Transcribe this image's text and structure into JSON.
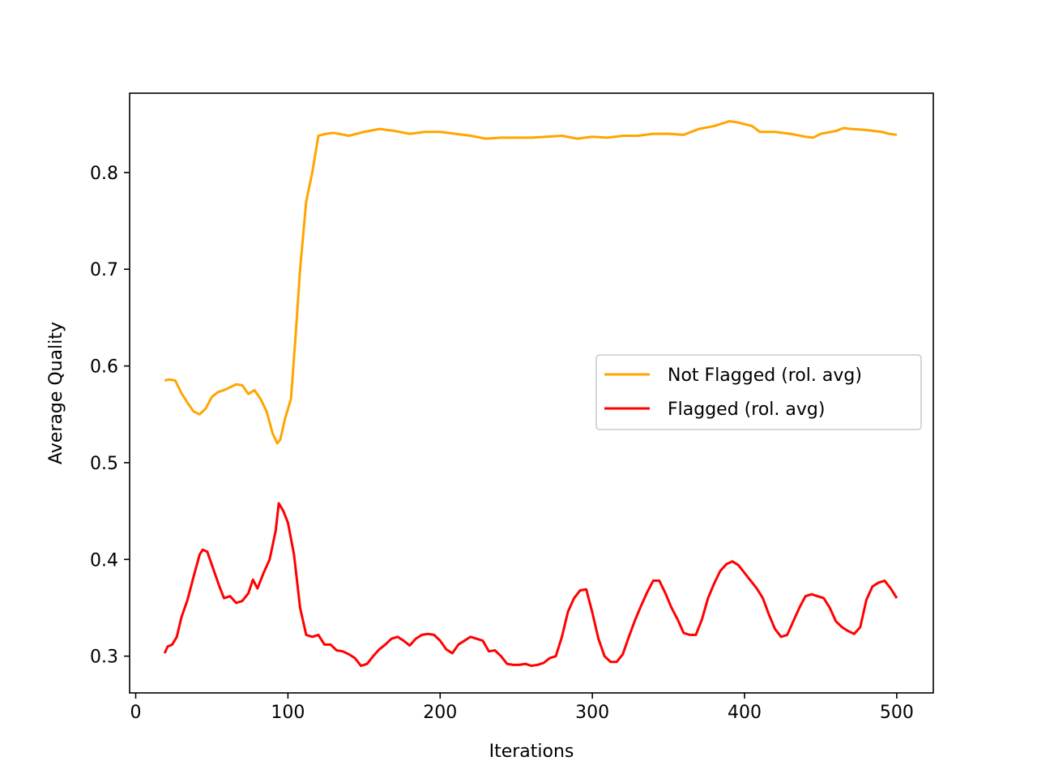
{
  "chart_data": {
    "type": "line",
    "title": "",
    "xlabel": "Iterations",
    "ylabel": "Average Quality",
    "xlim": [
      -4,
      524
    ],
    "ylim": [
      0.262,
      0.882
    ],
    "xticks": [
      0,
      100,
      200,
      300,
      400,
      500
    ],
    "xtick_labels": [
      "0",
      "100",
      "200",
      "300",
      "400",
      "500"
    ],
    "yticks": [
      0.3,
      0.4,
      0.5,
      0.6,
      0.7,
      0.8
    ],
    "ytick_labels": [
      "0.3",
      "0.4",
      "0.5",
      "0.6",
      "0.7",
      "0.8"
    ],
    "grid": false,
    "legend_position": "center-right",
    "series": [
      {
        "name": "Not Flagged (rol. avg)",
        "color": "#ffa500",
        "x": [
          19,
          22,
          26,
          30,
          34,
          38,
          42,
          46,
          50,
          54,
          58,
          62,
          66,
          70,
          74,
          78,
          82,
          86,
          90,
          93,
          95,
          98,
          102,
          105,
          108,
          112,
          116,
          120,
          125,
          130,
          140,
          150,
          160,
          170,
          180,
          190,
          200,
          210,
          220,
          230,
          240,
          250,
          260,
          270,
          280,
          290,
          300,
          310,
          320,
          330,
          340,
          350,
          360,
          370,
          380,
          390,
          395,
          400,
          405,
          410,
          420,
          430,
          440,
          445,
          450,
          460,
          465,
          470,
          480,
          490,
          495,
          500
        ],
        "y": [
          0.585,
          0.586,
          0.585,
          0.572,
          0.562,
          0.553,
          0.55,
          0.556,
          0.568,
          0.573,
          0.575,
          0.578,
          0.581,
          0.58,
          0.571,
          0.575,
          0.566,
          0.553,
          0.53,
          0.52,
          0.524,
          0.545,
          0.566,
          0.63,
          0.7,
          0.77,
          0.8,
          0.838,
          0.84,
          0.841,
          0.838,
          0.842,
          0.845,
          0.843,
          0.84,
          0.842,
          0.842,
          0.84,
          0.838,
          0.835,
          0.836,
          0.836,
          0.836,
          0.837,
          0.838,
          0.835,
          0.837,
          0.836,
          0.838,
          0.838,
          0.84,
          0.84,
          0.839,
          0.845,
          0.848,
          0.853,
          0.852,
          0.85,
          0.848,
          0.842,
          0.842,
          0.84,
          0.837,
          0.836,
          0.84,
          0.843,
          0.846,
          0.845,
          0.844,
          0.842,
          0.84,
          0.839
        ]
      },
      {
        "name": "Flagged (rol. avg)",
        "color": "#ff0000",
        "x": [
          19,
          21,
          24,
          27,
          30,
          34,
          38,
          42,
          44,
          47,
          51,
          55,
          58,
          62,
          66,
          70,
          74,
          77,
          80,
          84,
          88,
          92,
          94,
          97,
          100,
          104,
          108,
          112,
          116,
          120,
          124,
          128,
          132,
          136,
          140,
          144,
          148,
          152,
          156,
          160,
          164,
          168,
          172,
          176,
          180,
          184,
          188,
          192,
          196,
          200,
          204,
          208,
          212,
          216,
          220,
          224,
          228,
          232,
          236,
          240,
          244,
          248,
          252,
          256,
          260,
          264,
          268,
          272,
          276,
          280,
          284,
          288,
          292,
          296,
          300,
          304,
          308,
          312,
          316,
          320,
          324,
          328,
          332,
          336,
          340,
          344,
          348,
          352,
          356,
          360,
          364,
          368,
          372,
          376,
          380,
          384,
          388,
          392,
          396,
          400,
          404,
          408,
          412,
          416,
          420,
          424,
          428,
          432,
          436,
          440,
          444,
          448,
          452,
          456,
          460,
          464,
          468,
          472,
          476,
          480,
          484,
          488,
          492,
          496,
          500
        ],
        "y": [
          0.303,
          0.31,
          0.312,
          0.32,
          0.34,
          0.358,
          0.382,
          0.405,
          0.41,
          0.408,
          0.39,
          0.372,
          0.36,
          0.362,
          0.355,
          0.357,
          0.365,
          0.379,
          0.37,
          0.386,
          0.4,
          0.43,
          0.458,
          0.45,
          0.438,
          0.405,
          0.35,
          0.322,
          0.32,
          0.322,
          0.312,
          0.312,
          0.306,
          0.305,
          0.302,
          0.298,
          0.29,
          0.292,
          0.3,
          0.307,
          0.312,
          0.318,
          0.32,
          0.316,
          0.311,
          0.318,
          0.322,
          0.323,
          0.322,
          0.316,
          0.307,
          0.303,
          0.312,
          0.316,
          0.32,
          0.318,
          0.316,
          0.305,
          0.306,
          0.3,
          0.292,
          0.291,
          0.291,
          0.292,
          0.29,
          0.291,
          0.293,
          0.298,
          0.3,
          0.32,
          0.346,
          0.36,
          0.368,
          0.369,
          0.345,
          0.318,
          0.3,
          0.294,
          0.294,
          0.302,
          0.32,
          0.337,
          0.352,
          0.366,
          0.378,
          0.378,
          0.365,
          0.35,
          0.338,
          0.324,
          0.322,
          0.322,
          0.338,
          0.36,
          0.375,
          0.388,
          0.395,
          0.398,
          0.394,
          0.386,
          0.378,
          0.37,
          0.36,
          0.343,
          0.328,
          0.32,
          0.322,
          0.336,
          0.35,
          0.362,
          0.364,
          0.362,
          0.36,
          0.35,
          0.336,
          0.33,
          0.326,
          0.323,
          0.33,
          0.358,
          0.372,
          0.376,
          0.378,
          0.37,
          0.36
        ]
      }
    ]
  }
}
